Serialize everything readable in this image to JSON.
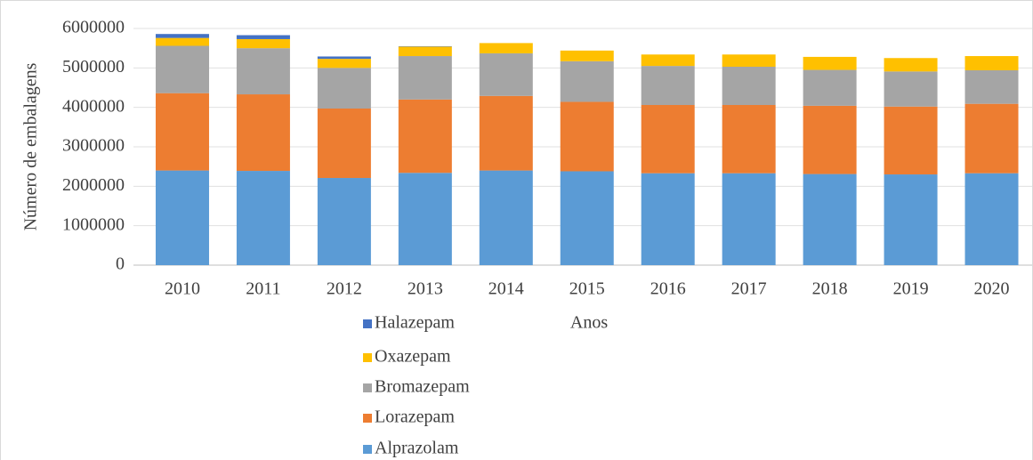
{
  "chart_data": {
    "type": "stacked_bar",
    "x_label": "Anos",
    "y_label": "Número de embalagens",
    "categories": [
      "2010",
      "2011",
      "2012",
      "2013",
      "2014",
      "2015",
      "2016",
      "2017",
      "2018",
      "2019",
      "2020"
    ],
    "series": [
      {
        "name": "Alprazolam",
        "color": "#5b9bd5",
        "values": [
          2400000,
          2390000,
          2210000,
          2340000,
          2400000,
          2380000,
          2330000,
          2330000,
          2310000,
          2300000,
          2330000
        ]
      },
      {
        "name": "Lorazepam",
        "color": "#ed7d31",
        "values": [
          1960000,
          1940000,
          1760000,
          1860000,
          1890000,
          1760000,
          1730000,
          1730000,
          1730000,
          1720000,
          1760000
        ]
      },
      {
        "name": "Bromazepam",
        "color": "#a5a5a5",
        "values": [
          1200000,
          1170000,
          1030000,
          1100000,
          1080000,
          1030000,
          990000,
          970000,
          910000,
          890000,
          850000
        ]
      },
      {
        "name": "Oxazepam",
        "color": "#ffc000",
        "values": [
          200000,
          230000,
          230000,
          240000,
          260000,
          270000,
          290000,
          310000,
          330000,
          340000,
          360000
        ]
      },
      {
        "name": "Halazepam",
        "color": "#4472c4",
        "values": [
          100000,
          100000,
          60000,
          10000,
          0,
          0,
          0,
          0,
          0,
          0,
          0
        ]
      }
    ],
    "ylim": [
      0,
      6000000
    ],
    "yticks": [
      0,
      1000000,
      2000000,
      3000000,
      4000000,
      5000000,
      6000000
    ],
    "grid": true
  }
}
